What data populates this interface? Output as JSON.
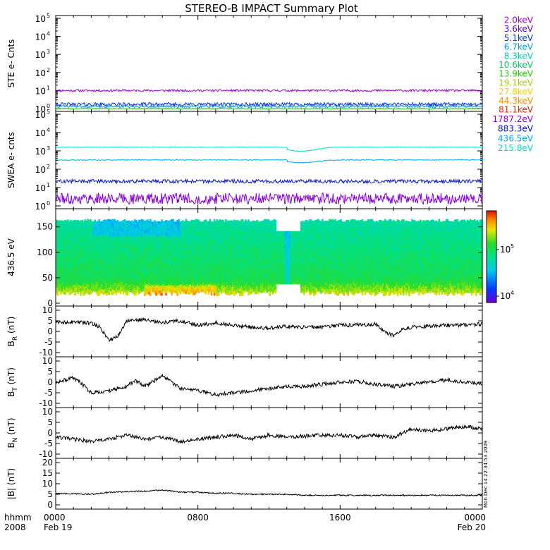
{
  "chart_data": {
    "title": "STEREO-B IMPACT Summary Plot",
    "type": "multi-panel time series",
    "x_axis": {
      "row1_label": "hhmm",
      "row2_label": "2008",
      "ticks": [
        {
          "hour": 0,
          "hhmm": "0000",
          "date": "Feb 19"
        },
        {
          "hour": 8,
          "hhmm": "0800",
          "date": ""
        },
        {
          "hour": 16,
          "hhmm": "1600",
          "date": ""
        },
        {
          "hour": 24,
          "hhmm": "0000",
          "date": "Feb 20"
        }
      ],
      "range_hours": [
        0,
        24
      ]
    },
    "panels": [
      {
        "id": "ste",
        "ylabel": "STE e- Cnts",
        "type": "line",
        "scale": "log",
        "ylim_exp": [
          0,
          5
        ],
        "tick_exponents": [
          0,
          1,
          2,
          3,
          4,
          5
        ],
        "legend": [
          {
            "label": "2.0keV",
            "color": "#9900cc"
          },
          {
            "label": "3.6keV",
            "color": "#5500cc"
          },
          {
            "label": "5.1keV",
            "color": "#0033ee"
          },
          {
            "label": "6.7keV",
            "color": "#0099ee"
          },
          {
            "label": "8.3keV",
            "color": "#00ccbb"
          },
          {
            "label": "10.6keV",
            "color": "#00cc66"
          },
          {
            "label": "13.9keV",
            "color": "#22cc00"
          },
          {
            "label": "19.1keV",
            "color": "#aacc00"
          },
          {
            "label": "27.8keV",
            "color": "#ffcc00"
          },
          {
            "label": "44.3keV",
            "color": "#ff8800"
          },
          {
            "label": "81.1keV",
            "color": "#ee2200"
          }
        ],
        "series": [
          {
            "name": "2.0keV",
            "color": "#9900cc",
            "level": 10,
            "noise_dec": 0.06
          },
          {
            "name": "3.6keV",
            "color": "#0033ee",
            "level": 1.7,
            "noise_dec": 0.1
          },
          {
            "name": "5.1keV",
            "color": "#0099ee",
            "level": 1.3,
            "noise_dec": 0.07
          },
          {
            "name": "8.3keV",
            "color": "#22cc00",
            "level": 1.0,
            "noise_dec": 0.03
          }
        ]
      },
      {
        "id": "swea",
        "ylabel": "SWEA e- cnts",
        "type": "line",
        "scale": "log",
        "ylim_exp": [
          0,
          5
        ],
        "tick_exponents": [
          0,
          1,
          2,
          3,
          4,
          5
        ],
        "legend": [
          {
            "label": "1787.2eV",
            "color": "#8800dd"
          },
          {
            "label": "883.3eV",
            "color": "#0011dd"
          },
          {
            "label": "436.5eV",
            "color": "#00aaee"
          },
          {
            "label": "215.8eV",
            "color": "#00ddcc"
          }
        ],
        "series": [
          {
            "name": "215.8eV",
            "color": "#00ddcc",
            "level": 1600,
            "noise_dec": 0.02,
            "dip_at_hour": 13,
            "dip_factor": 0.6
          },
          {
            "name": "436.5eV",
            "color": "#00aaee",
            "level": 320,
            "noise_dec": 0.02,
            "dip_at_hour": 13,
            "dip_factor": 0.7
          },
          {
            "name": "883.3eV",
            "color": "#0011dd",
            "level": 22,
            "noise_dec": 0.1
          },
          {
            "name": "1787.2eV",
            "color": "#8800dd",
            "level": 2.5,
            "noise_dec": 0.3
          }
        ]
      },
      {
        "id": "pad",
        "ylabel": "436.5 eV",
        "type": "heatmap",
        "ylim": [
          0,
          180
        ],
        "ticks": [
          0,
          50,
          100,
          150
        ],
        "colorbar_label": "10",
        "colorbar_ticks": [
          {
            "base": "10",
            "exp": "5"
          },
          {
            "base": "10",
            "exp": "4"
          }
        ]
      },
      {
        "id": "br",
        "ylabel": "B",
        "ylabel_sub": "R",
        "ylabel_unit": "(nT)",
        "type": "line",
        "ylim": [
          -10,
          10
        ],
        "ticks": [
          -10,
          -5,
          0,
          5,
          10
        ],
        "anchors": [
          [
            0,
            4
          ],
          [
            1,
            4.5
          ],
          [
            2,
            4
          ],
          [
            2.5,
            2
          ],
          [
            3,
            -4
          ],
          [
            3.5,
            -2
          ],
          [
            4,
            5
          ],
          [
            5,
            5.5
          ],
          [
            6,
            4
          ],
          [
            7,
            5
          ],
          [
            8,
            3
          ],
          [
            9,
            4
          ],
          [
            10,
            3
          ],
          [
            11,
            2
          ],
          [
            12,
            1.5
          ],
          [
            13,
            2.5
          ],
          [
            14,
            2
          ],
          [
            15,
            2
          ],
          [
            16,
            3
          ],
          [
            17,
            3
          ],
          [
            18,
            3.5
          ],
          [
            18.5,
            0
          ],
          [
            19,
            -2
          ],
          [
            19.5,
            1
          ],
          [
            20,
            2
          ],
          [
            22,
            3
          ],
          [
            23,
            3
          ],
          [
            24,
            3.5
          ]
        ]
      },
      {
        "id": "bt",
        "ylabel": "B",
        "ylabel_sub": "T",
        "ylabel_unit": "(nT)",
        "type": "line",
        "ylim": [
          -10,
          10
        ],
        "ticks": [
          -10,
          -5,
          0,
          5,
          10
        ],
        "anchors": [
          [
            0,
            0
          ],
          [
            1,
            2
          ],
          [
            1.5,
            -1
          ],
          [
            2,
            -5
          ],
          [
            3,
            -4
          ],
          [
            4,
            -2
          ],
          [
            4.5,
            1
          ],
          [
            5,
            -2
          ],
          [
            6,
            3
          ],
          [
            6.5,
            0
          ],
          [
            7,
            -3
          ],
          [
            8,
            -4
          ],
          [
            9,
            -6
          ],
          [
            10,
            -5
          ],
          [
            11,
            -4
          ],
          [
            12,
            -3
          ],
          [
            13,
            -2
          ],
          [
            14,
            -2
          ],
          [
            15,
            -1
          ],
          [
            16,
            0
          ],
          [
            17,
            0.5
          ],
          [
            18,
            -1
          ],
          [
            19,
            -2
          ],
          [
            20,
            -1
          ],
          [
            21,
            0
          ],
          [
            22,
            1
          ],
          [
            23,
            0
          ],
          [
            24,
            -1
          ]
        ]
      },
      {
        "id": "bn",
        "ylabel": "B",
        "ylabel_sub": "N",
        "ylabel_unit": "(nT)",
        "type": "line",
        "ylim": [
          -10,
          10
        ],
        "ticks": [
          -10,
          -5,
          0,
          5,
          10
        ],
        "anchors": [
          [
            0,
            -2
          ],
          [
            1,
            -3
          ],
          [
            2,
            -4
          ],
          [
            3,
            -3
          ],
          [
            4,
            -1
          ],
          [
            5,
            -3
          ],
          [
            6,
            -2
          ],
          [
            7,
            -4
          ],
          [
            8,
            -3
          ],
          [
            9,
            -2
          ],
          [
            10,
            -1
          ],
          [
            11,
            -3
          ],
          [
            12,
            -1
          ],
          [
            13,
            -2
          ],
          [
            14,
            -1.5
          ],
          [
            15,
            -1
          ],
          [
            16,
            -1
          ],
          [
            17,
            -2
          ],
          [
            18,
            -1
          ],
          [
            19,
            -2
          ],
          [
            20,
            2
          ],
          [
            21,
            1
          ],
          [
            22,
            2
          ],
          [
            23,
            3
          ],
          [
            24,
            2
          ]
        ]
      },
      {
        "id": "bmag",
        "ylabel": "|B| (nT)",
        "type": "line",
        "ylim": [
          0,
          20
        ],
        "ticks": [
          0,
          5,
          10,
          15,
          20
        ],
        "anchors": [
          [
            0,
            5.5
          ],
          [
            2,
            5
          ],
          [
            3,
            6
          ],
          [
            5,
            6.5
          ],
          [
            6,
            7
          ],
          [
            7,
            6
          ],
          [
            8,
            6
          ],
          [
            9,
            5.5
          ],
          [
            10,
            5.5
          ],
          [
            11,
            5
          ],
          [
            12,
            5
          ],
          [
            13,
            5
          ],
          [
            14,
            4.5
          ],
          [
            15,
            4.5
          ],
          [
            16,
            4.5
          ],
          [
            17,
            4.5
          ],
          [
            18,
            4.5
          ],
          [
            19,
            4.5
          ],
          [
            20,
            4.5
          ],
          [
            22,
            4.5
          ],
          [
            24,
            4.5
          ]
        ]
      }
    ]
  },
  "stamp": {
    "text": "Mon Dec 14 22:34:53 2009"
  }
}
